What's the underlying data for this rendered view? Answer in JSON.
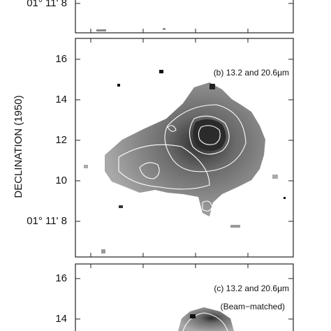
{
  "chart_data": [
    {
      "type": "image",
      "ylim": [
        6.55,
        17.34
      ],
      "yticks": [
        {
          "value": 8,
          "label": "01° 11' 8"
        }
      ]
    },
    {
      "type": "image",
      "ylabel": "DECLINATION (1950)",
      "annotation": "(b) 13.2 and 20.6μm",
      "ylim": [
        6.24,
        17.03
      ],
      "yticks": [
        {
          "value": 8,
          "label": "01° 11' 8"
        },
        10,
        12,
        14,
        16
      ]
    },
    {
      "type": "image",
      "annotation": "(c) 13.2 and 20.6μm",
      "subannotation": "(Beam−matched)",
      "ylim": [
        5.93,
        16.72
      ],
      "yticks": [
        14,
        16
      ]
    }
  ]
}
